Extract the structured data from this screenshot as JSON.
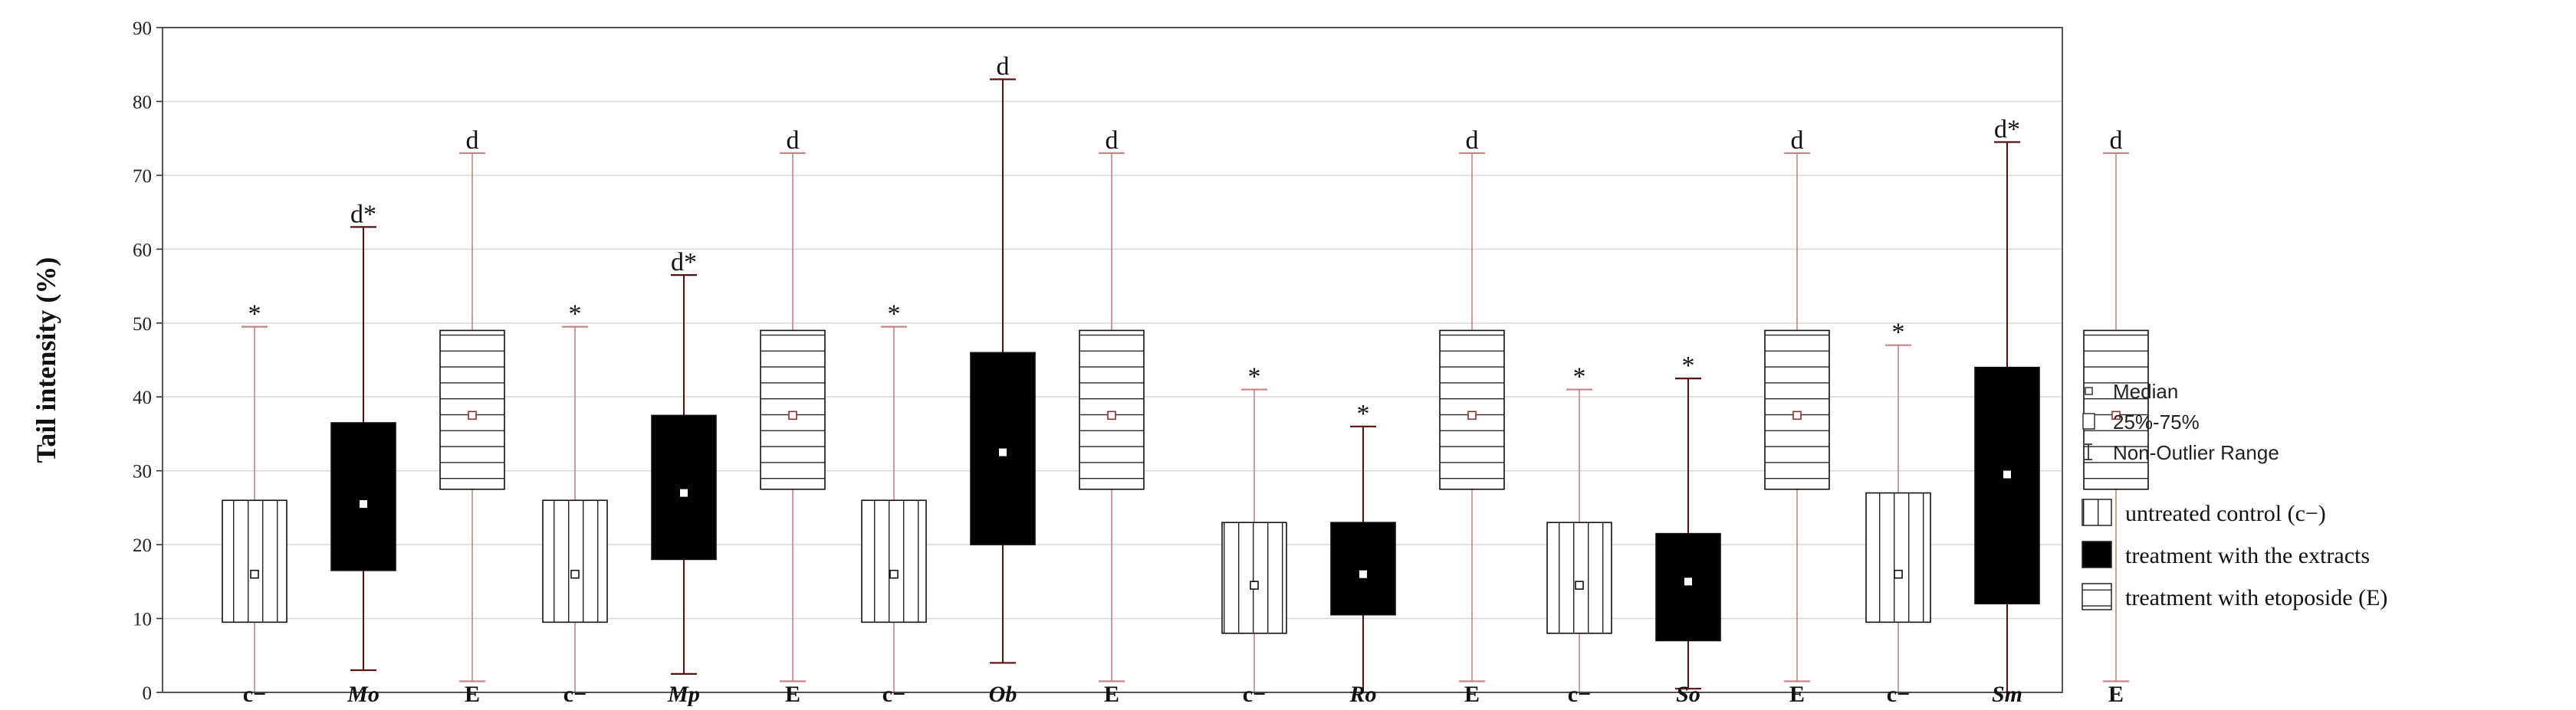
{
  "chart_data": {
    "type": "box",
    "ylabel": "Tail intensity (%)",
    "xlabel": "",
    "ylim": [
      0,
      90
    ],
    "yticks": [
      0,
      10,
      20,
      30,
      40,
      50,
      60,
      70,
      80,
      90
    ],
    "grid": true,
    "legend_position": "right",
    "legend": {
      "stat_items": [
        {
          "label": "Median",
          "symbol": "median-icon"
        },
        {
          "label": "25%-75%",
          "symbol": "box-icon"
        },
        {
          "label": "Non-Outlier Range",
          "symbol": "whisker-icon"
        }
      ],
      "fill_items": [
        {
          "label": "untreated control (c−)",
          "pattern": "vertical"
        },
        {
          "label": "treatment with the extracts",
          "pattern": "solid"
        },
        {
          "label": "treatment with etoposide (E)",
          "pattern": "horizontal"
        }
      ]
    },
    "groups": [
      {
        "extract": "Mo",
        "boxes": [
          {
            "label": "c−",
            "treatment": "control",
            "min": 0,
            "q1": 9.5,
            "median": 16,
            "q3": 26,
            "max": 49.5,
            "annotation": "*"
          },
          {
            "label": "Mo",
            "treatment": "extract",
            "min": 3,
            "q1": 16.5,
            "median": 25.5,
            "q3": 36.5,
            "max": 63,
            "annotation": "d*"
          },
          {
            "label": "E",
            "treatment": "etoposide",
            "min": 1.5,
            "q1": 27.5,
            "median": 37.5,
            "q3": 49,
            "max": 73,
            "annotation": "d"
          }
        ]
      },
      {
        "extract": "Mp",
        "boxes": [
          {
            "label": "c−",
            "treatment": "control",
            "min": 0,
            "q1": 9.5,
            "median": 16,
            "q3": 26,
            "max": 49.5,
            "annotation": "*"
          },
          {
            "label": "Mp",
            "treatment": "extract",
            "min": 2.5,
            "q1": 18,
            "median": 27,
            "q3": 37.5,
            "max": 56.5,
            "annotation": "d*"
          },
          {
            "label": "E",
            "treatment": "etoposide",
            "min": 1.5,
            "q1": 27.5,
            "median": 37.5,
            "q3": 49,
            "max": 73,
            "annotation": "d"
          }
        ]
      },
      {
        "extract": "Ob",
        "boxes": [
          {
            "label": "c−",
            "treatment": "control",
            "min": 0,
            "q1": 9.5,
            "median": 16,
            "q3": 26,
            "max": 49.5,
            "annotation": "*"
          },
          {
            "label": "Ob",
            "treatment": "extract",
            "min": 4,
            "q1": 20,
            "median": 32.5,
            "q3": 46,
            "max": 83,
            "annotation": "d"
          },
          {
            "label": "E",
            "treatment": "etoposide",
            "min": 1.5,
            "q1": 27.5,
            "median": 37.5,
            "q3": 49,
            "max": 73,
            "annotation": "d"
          }
        ]
      },
      {
        "extract": "Ro",
        "boxes": [
          {
            "label": "c−",
            "treatment": "control",
            "min": 0,
            "q1": 8,
            "median": 14.5,
            "q3": 23,
            "max": 41,
            "annotation": "*"
          },
          {
            "label": "Ro",
            "treatment": "extract",
            "min": 0,
            "q1": 10.5,
            "median": 16,
            "q3": 23,
            "max": 36,
            "annotation": "*"
          },
          {
            "label": "E",
            "treatment": "etoposide",
            "min": 1.5,
            "q1": 27.5,
            "median": 37.5,
            "q3": 49,
            "max": 73,
            "annotation": "d"
          }
        ]
      },
      {
        "extract": "So",
        "boxes": [
          {
            "label": "c−",
            "treatment": "control",
            "min": 0,
            "q1": 8,
            "median": 14.5,
            "q3": 23,
            "max": 41,
            "annotation": "*"
          },
          {
            "label": "So",
            "treatment": "extract",
            "min": 0.5,
            "q1": 7,
            "median": 15,
            "q3": 21.5,
            "max": 42.5,
            "annotation": "*"
          },
          {
            "label": "E",
            "treatment": "etoposide",
            "min": 1.5,
            "q1": 27.5,
            "median": 37.5,
            "q3": 49,
            "max": 73,
            "annotation": "d"
          }
        ]
      },
      {
        "extract": "Sm",
        "boxes": [
          {
            "label": "c−",
            "treatment": "control",
            "min": 0,
            "q1": 9.5,
            "median": 16,
            "q3": 27,
            "max": 47,
            "annotation": "*"
          },
          {
            "label": "Sm",
            "treatment": "extract",
            "min": 0,
            "q1": 12,
            "median": 29.5,
            "q3": 44,
            "max": 74.5,
            "annotation": "d*"
          },
          {
            "label": "E",
            "treatment": "etoposide",
            "min": 1.5,
            "q1": 27.5,
            "median": 37.5,
            "q3": 49,
            "max": 73,
            "annotation": "d"
          }
        ]
      }
    ]
  }
}
